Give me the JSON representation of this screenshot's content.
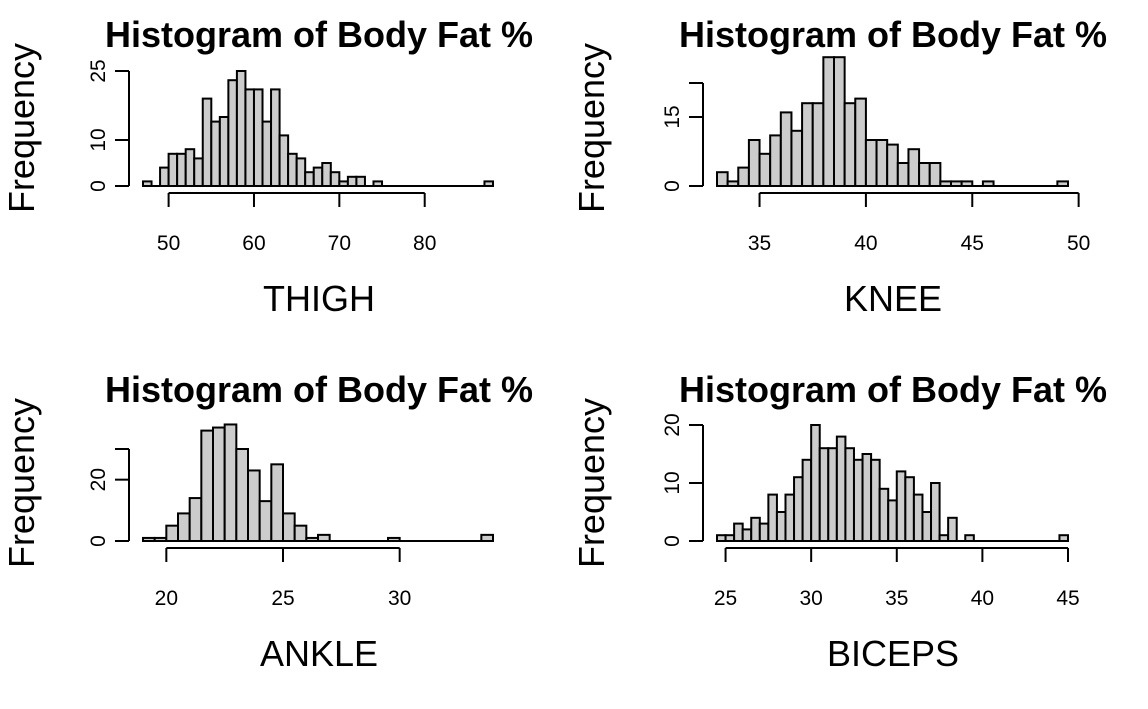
{
  "colors": {
    "bar_fill": "#cccccc",
    "bar_stroke": "#000000",
    "background": "#ffffff"
  },
  "chart_data": [
    {
      "type": "bar",
      "title": "Histogram of Body Fat %",
      "xlabel": "THIGH",
      "ylabel": "Frequency",
      "x": [
        47.5,
        48.5,
        49.5,
        50.5,
        51.5,
        52.5,
        53.5,
        54.5,
        55.5,
        56.5,
        57.5,
        58.5,
        59.5,
        60.5,
        61.5,
        62.5,
        63.5,
        64.5,
        65.5,
        66.5,
        67.5,
        68.5,
        69.5,
        70.5,
        71.5,
        72.5,
        73.5,
        74.5,
        75.5,
        76.5,
        77.5,
        78.5,
        79.5,
        80.5,
        81.5,
        82.5,
        83.5,
        84.5,
        85.5,
        86.5,
        87.5
      ],
      "values": [
        1,
        0,
        4,
        7,
        7,
        8,
        6,
        19,
        14,
        15,
        23,
        25,
        21,
        21,
        14,
        21,
        11,
        7,
        6,
        3,
        4,
        5,
        3,
        1,
        2,
        2,
        0,
        1,
        0,
        0,
        0,
        0,
        0,
        0,
        0,
        0,
        0,
        0,
        0,
        0,
        1
      ],
      "bin_width": 1,
      "xlim": [
        47,
        88
      ],
      "xticks": [
        "50",
        "60",
        "70",
        "80"
      ],
      "ylim": [
        0,
        25
      ],
      "yticks": [
        "0",
        "10",
        "25"
      ]
    },
    {
      "type": "bar",
      "title": "Histogram of Body Fat %",
      "xlabel": "KNEE",
      "ylabel": "Frequency",
      "x": [
        33.25,
        33.75,
        34.25,
        34.75,
        35.25,
        35.75,
        36.25,
        36.75,
        37.25,
        37.75,
        38.25,
        38.75,
        39.25,
        39.75,
        40.25,
        40.75,
        41.25,
        41.75,
        42.25,
        42.75,
        43.25,
        43.75,
        44.25,
        44.75,
        45.25,
        45.75,
        46.25,
        46.75,
        47.25,
        47.75,
        48.25,
        48.75,
        49.25
      ],
      "values": [
        3,
        1,
        4,
        10,
        7,
        11,
        16,
        12,
        18,
        18,
        28,
        28,
        18,
        19,
        10,
        10,
        9,
        5,
        8,
        5,
        5,
        1,
        1,
        1,
        0,
        1,
        0,
        0,
        0,
        0,
        0,
        0,
        1
      ],
      "bin_width": 0.5,
      "xlim": [
        33,
        49.5
      ],
      "xticks": [
        "35",
        "40",
        "45",
        "50"
      ],
      "ylim": [
        0,
        25
      ],
      "yticks": [
        "0",
        "15"
      ]
    },
    {
      "type": "bar",
      "title": "Histogram of Body Fat %",
      "xlabel": "ANKLE",
      "ylabel": "Frequency",
      "x": [
        19.25,
        19.75,
        20.25,
        20.75,
        21.25,
        21.75,
        22.25,
        22.75,
        23.25,
        23.75,
        24.25,
        24.75,
        25.25,
        25.75,
        26.25,
        26.75,
        27.25,
        27.75,
        28.25,
        28.75,
        29.25,
        29.75,
        30.25,
        30.75,
        31.25,
        31.75,
        32.25,
        32.75,
        33.25,
        33.75
      ],
      "values": [
        1,
        1,
        5,
        9,
        14,
        36,
        37,
        38,
        30,
        23,
        13,
        25,
        9,
        5,
        1,
        2,
        0,
        0,
        0,
        0,
        0,
        1,
        0,
        0,
        0,
        0,
        0,
        0,
        0,
        2
      ],
      "bin_width": 0.5,
      "xlim": [
        19,
        34
      ],
      "xticks": [
        "20",
        "25",
        "30"
      ],
      "ylim": [
        0,
        30
      ],
      "yticks": [
        "0",
        "20"
      ]
    },
    {
      "type": "bar",
      "title": "Histogram of Body Fat %",
      "xlabel": "BICEPS",
      "ylabel": "Frequency",
      "x": [
        24.75,
        25.25,
        25.75,
        26.25,
        26.75,
        27.25,
        27.75,
        28.25,
        28.75,
        29.25,
        29.75,
        30.25,
        30.75,
        31.25,
        31.75,
        32.25,
        32.75,
        33.25,
        33.75,
        34.25,
        34.75,
        35.25,
        35.75,
        36.25,
        36.75,
        37.25,
        37.75,
        38.25,
        38.75,
        39.25,
        39.75,
        40.25,
        40.75,
        41.25,
        41.75,
        42.25,
        42.75,
        43.25,
        43.75,
        44.25,
        44.75
      ],
      "values": [
        1,
        1,
        3,
        2,
        4,
        3,
        8,
        5,
        8,
        11,
        14,
        20,
        16,
        16,
        18,
        16,
        14,
        15,
        14,
        9,
        7,
        12,
        11,
        8,
        5,
        10,
        1,
        4,
        0,
        1,
        0,
        0,
        0,
        0,
        0,
        0,
        0,
        0,
        0,
        0,
        1
      ],
      "bin_width": 0.5,
      "xlim": [
        24.5,
        45
      ],
      "xticks": [
        "25",
        "30",
        "35",
        "40",
        "45"
      ],
      "ylim": [
        0,
        20
      ],
      "yticks": [
        "0",
        "10",
        "20"
      ]
    }
  ]
}
